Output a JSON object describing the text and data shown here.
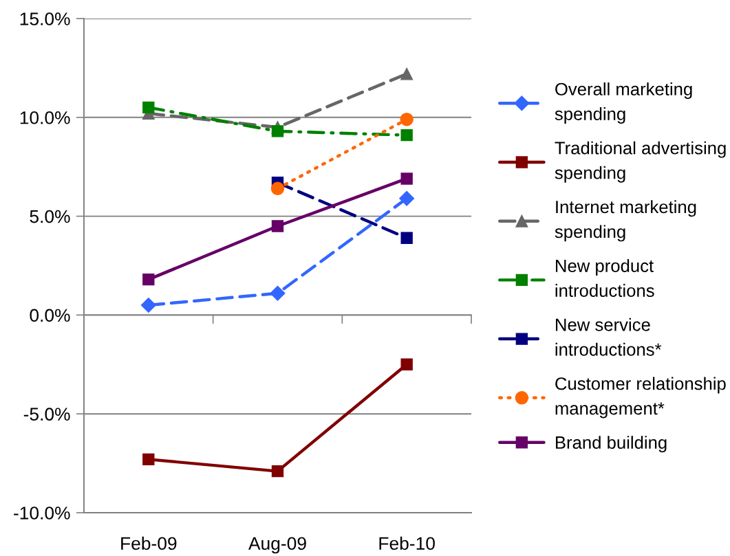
{
  "chart_data": {
    "type": "line",
    "categories": [
      "Feb-09",
      "Aug-09",
      "Feb-10"
    ],
    "ylim": [
      -10,
      15
    ],
    "yticks": [
      {
        "value": -10,
        "label": "-10.0%"
      },
      {
        "value": -5,
        "label": "-5.0%"
      },
      {
        "value": 0,
        "label": "0.0%"
      },
      {
        "value": 5,
        "label": "5.0%"
      },
      {
        "value": 10,
        "label": "10.0%"
      },
      {
        "value": 15,
        "label": "15.0%"
      }
    ],
    "grid": "y",
    "legend": "right",
    "series": [
      {
        "name": "Overall marketing spending",
        "color": "#3366ff",
        "values": [
          0.5,
          1.1,
          5.9
        ],
        "marker": "diamond",
        "line_style": "dashed"
      },
      {
        "name": "Traditional advertising spending",
        "color": "#800000",
        "values": [
          -7.3,
          -7.9,
          -2.5
        ],
        "marker": "square",
        "line_style": "solid"
      },
      {
        "name": "Internet marketing spending",
        "color": "#666666",
        "values": [
          10.2,
          9.5,
          12.2
        ],
        "marker": "triangle",
        "line_style": "dashed"
      },
      {
        "name": "New product introductions",
        "color": "#008000",
        "values": [
          10.5,
          9.3,
          9.1
        ],
        "marker": "square",
        "line_style": "dashdot"
      },
      {
        "name": "New service introductions*",
        "color": "#000080",
        "values": [
          null,
          6.7,
          3.9
        ],
        "marker": "square",
        "line_style": "dashed"
      },
      {
        "name": "Customer relationship management*",
        "color": "#ff6600",
        "values": [
          null,
          6.4,
          9.9
        ],
        "marker": "circle",
        "line_style": "dotted"
      },
      {
        "name": "Brand building",
        "color": "#660066",
        "values": [
          1.8,
          4.5,
          6.9
        ],
        "marker": "square",
        "line_style": "solid"
      }
    ]
  }
}
